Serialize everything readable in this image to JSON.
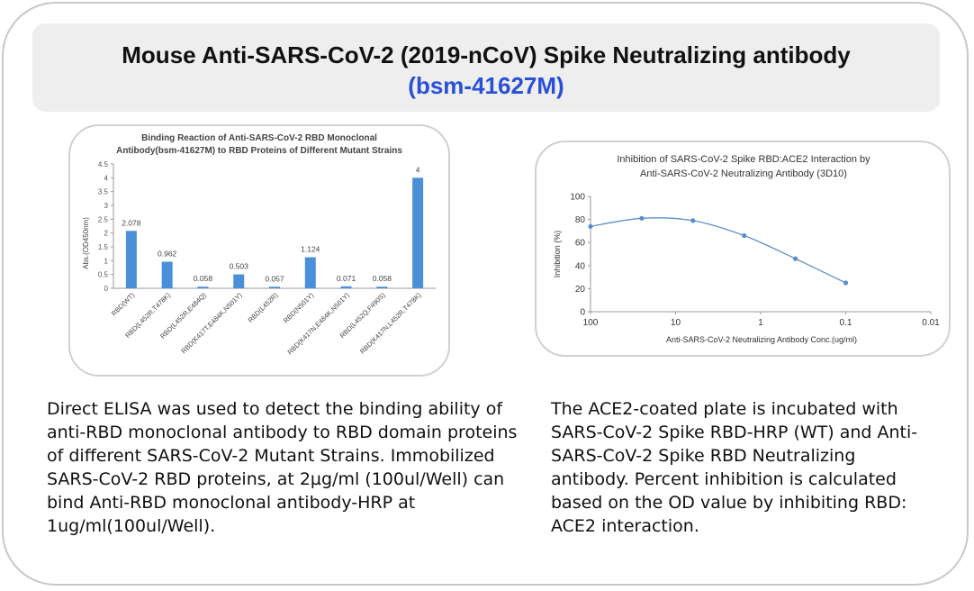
{
  "header": {
    "title": "Mouse Anti-SARS-CoV-2 (2019-nCoV) Spike Neutralizing antibody",
    "catalog": "(bsm-41627M)"
  },
  "chart_data": [
    {
      "type": "bar",
      "title_line1": "Binding Reaction of Anti-SARS-CoV-2 RBD Monoclonal",
      "title_line2": "Antibody(bsm-41627M) to RBD Proteins of Different Mutant Strains",
      "xlabel": "",
      "ylabel": "Abs.(OD450nm)",
      "ylim": [
        0,
        4.5
      ],
      "yticks": [
        "0",
        "0.5",
        "1",
        "1.5",
        "2",
        "2.5",
        "3",
        "3.5",
        "4",
        "4.5"
      ],
      "categories": [
        "RBD(WT)",
        "RBD(L452R,T478K)",
        "RBD(L452R,E484Q)",
        "RBD(K417T,E484K,N501Y)",
        "RBD(L452R)",
        "RBD(N501Y)",
        "RBD(K417N,E484K,N501Y)",
        "RBD(L452Q,F490S)",
        "RBD(K417N,L452R,T478K)"
      ],
      "values": [
        2.078,
        0.962,
        0.058,
        0.503,
        0.057,
        1.124,
        0.071,
        0.058,
        4
      ],
      "value_labels": [
        "2.078",
        "0.962",
        "0.058",
        "0.503",
        "0.057",
        "1.124",
        "0.071",
        "0.058",
        "4"
      ],
      "bar_color": "#4a8fd8",
      "grid": false
    },
    {
      "type": "line",
      "title_line1": "Inhibition of SARS-CoV-2 Spike RBD:ACE2 Interaction by",
      "title_line2": "Anti-SARS-CoV-2 Neutralizing Antibody (3D10)",
      "xlabel": "Anti-SARS-CoV-2 Neutralizing Antibody Conc.(ug/ml)",
      "ylabel": "Inhibition (%)",
      "x_scale": "log",
      "x_reversed": true,
      "xlim": [
        100,
        0.01
      ],
      "xticks": [
        "100",
        "10",
        "1",
        "0.1",
        "0.01"
      ],
      "ylim": [
        0,
        100
      ],
      "yticks": [
        "0",
        "20",
        "40",
        "60",
        "80",
        "100"
      ],
      "x": [
        100,
        25,
        6.25,
        1.5625,
        0.390625,
        0.1
      ],
      "values": [
        74,
        81,
        79,
        66,
        46,
        25
      ],
      "line_color": "#5b8fc9",
      "grid": false
    }
  ],
  "descriptions": {
    "left": "Direct ELISA was used to detect the binding ability of anti-RBD monoclonal antibody to RBD domain proteins of different SARS-CoV-2 Mutant Strains. Immobilized SARS-CoV-2 RBD proteins, at 2µg/ml (100ul/Well) can bind Anti-RBD monoclonal antibody-HRP at 1ug/ml(100ul/Well).",
    "right": "The ACE2-coated plate is incubated with SARS-CoV-2 Spike RBD-HRP (WT) and Anti-SARS-CoV-2 Spike RBD Neutralizing antibody. Percent inhibition is calculated based on the OD value by inhibiting RBD: ACE2 interaction."
  }
}
